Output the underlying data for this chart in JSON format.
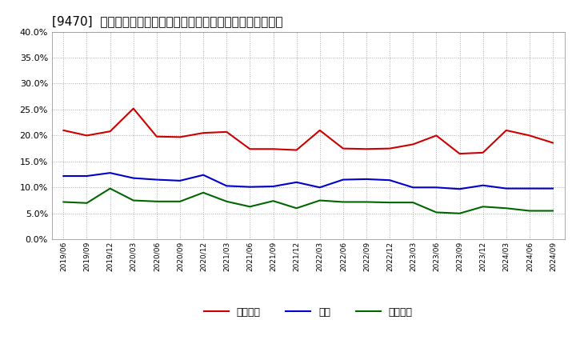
{
  "title": "[9470]  売上債権、在庫、買入債務の総資産に対する比率の推移",
  "dates": [
    "2019/06",
    "2019/09",
    "2019/12",
    "2020/03",
    "2020/06",
    "2020/09",
    "2020/12",
    "2021/03",
    "2021/06",
    "2021/09",
    "2021/12",
    "2022/03",
    "2022/06",
    "2022/09",
    "2022/12",
    "2023/03",
    "2023/06",
    "2023/09",
    "2023/12",
    "2024/03",
    "2024/06",
    "2024/09"
  ],
  "uriage": [
    0.21,
    0.2,
    0.208,
    0.252,
    0.198,
    0.197,
    0.205,
    0.207,
    0.174,
    0.174,
    0.172,
    0.21,
    0.175,
    0.174,
    0.175,
    0.183,
    0.2,
    0.165,
    0.167,
    0.21,
    0.2,
    0.186
  ],
  "zaiko": [
    0.122,
    0.122,
    0.128,
    0.118,
    0.115,
    0.113,
    0.124,
    0.103,
    0.101,
    0.102,
    0.11,
    0.1,
    0.115,
    0.116,
    0.114,
    0.1,
    0.1,
    0.097,
    0.104,
    0.098,
    0.098,
    0.098
  ],
  "kaiire": [
    0.072,
    0.07,
    0.098,
    0.075,
    0.073,
    0.073,
    0.09,
    0.073,
    0.063,
    0.074,
    0.06,
    0.075,
    0.072,
    0.072,
    0.071,
    0.071,
    0.052,
    0.05,
    0.063,
    0.06,
    0.055,
    0.055
  ],
  "uriage_color": "#cc0000",
  "zaiko_color": "#0000cc",
  "kaiire_color": "#006600",
  "uriage_label": "売上債権",
  "zaiko_label": "在庫",
  "kaiire_label": "買入債務",
  "ylim": [
    0.0,
    0.4
  ],
  "yticks": [
    0.0,
    0.05,
    0.1,
    0.15,
    0.2,
    0.25,
    0.3,
    0.35,
    0.4
  ],
  "bg_color": "#ffffff",
  "grid_color": "#aaaaaa",
  "title_fontsize": 11
}
